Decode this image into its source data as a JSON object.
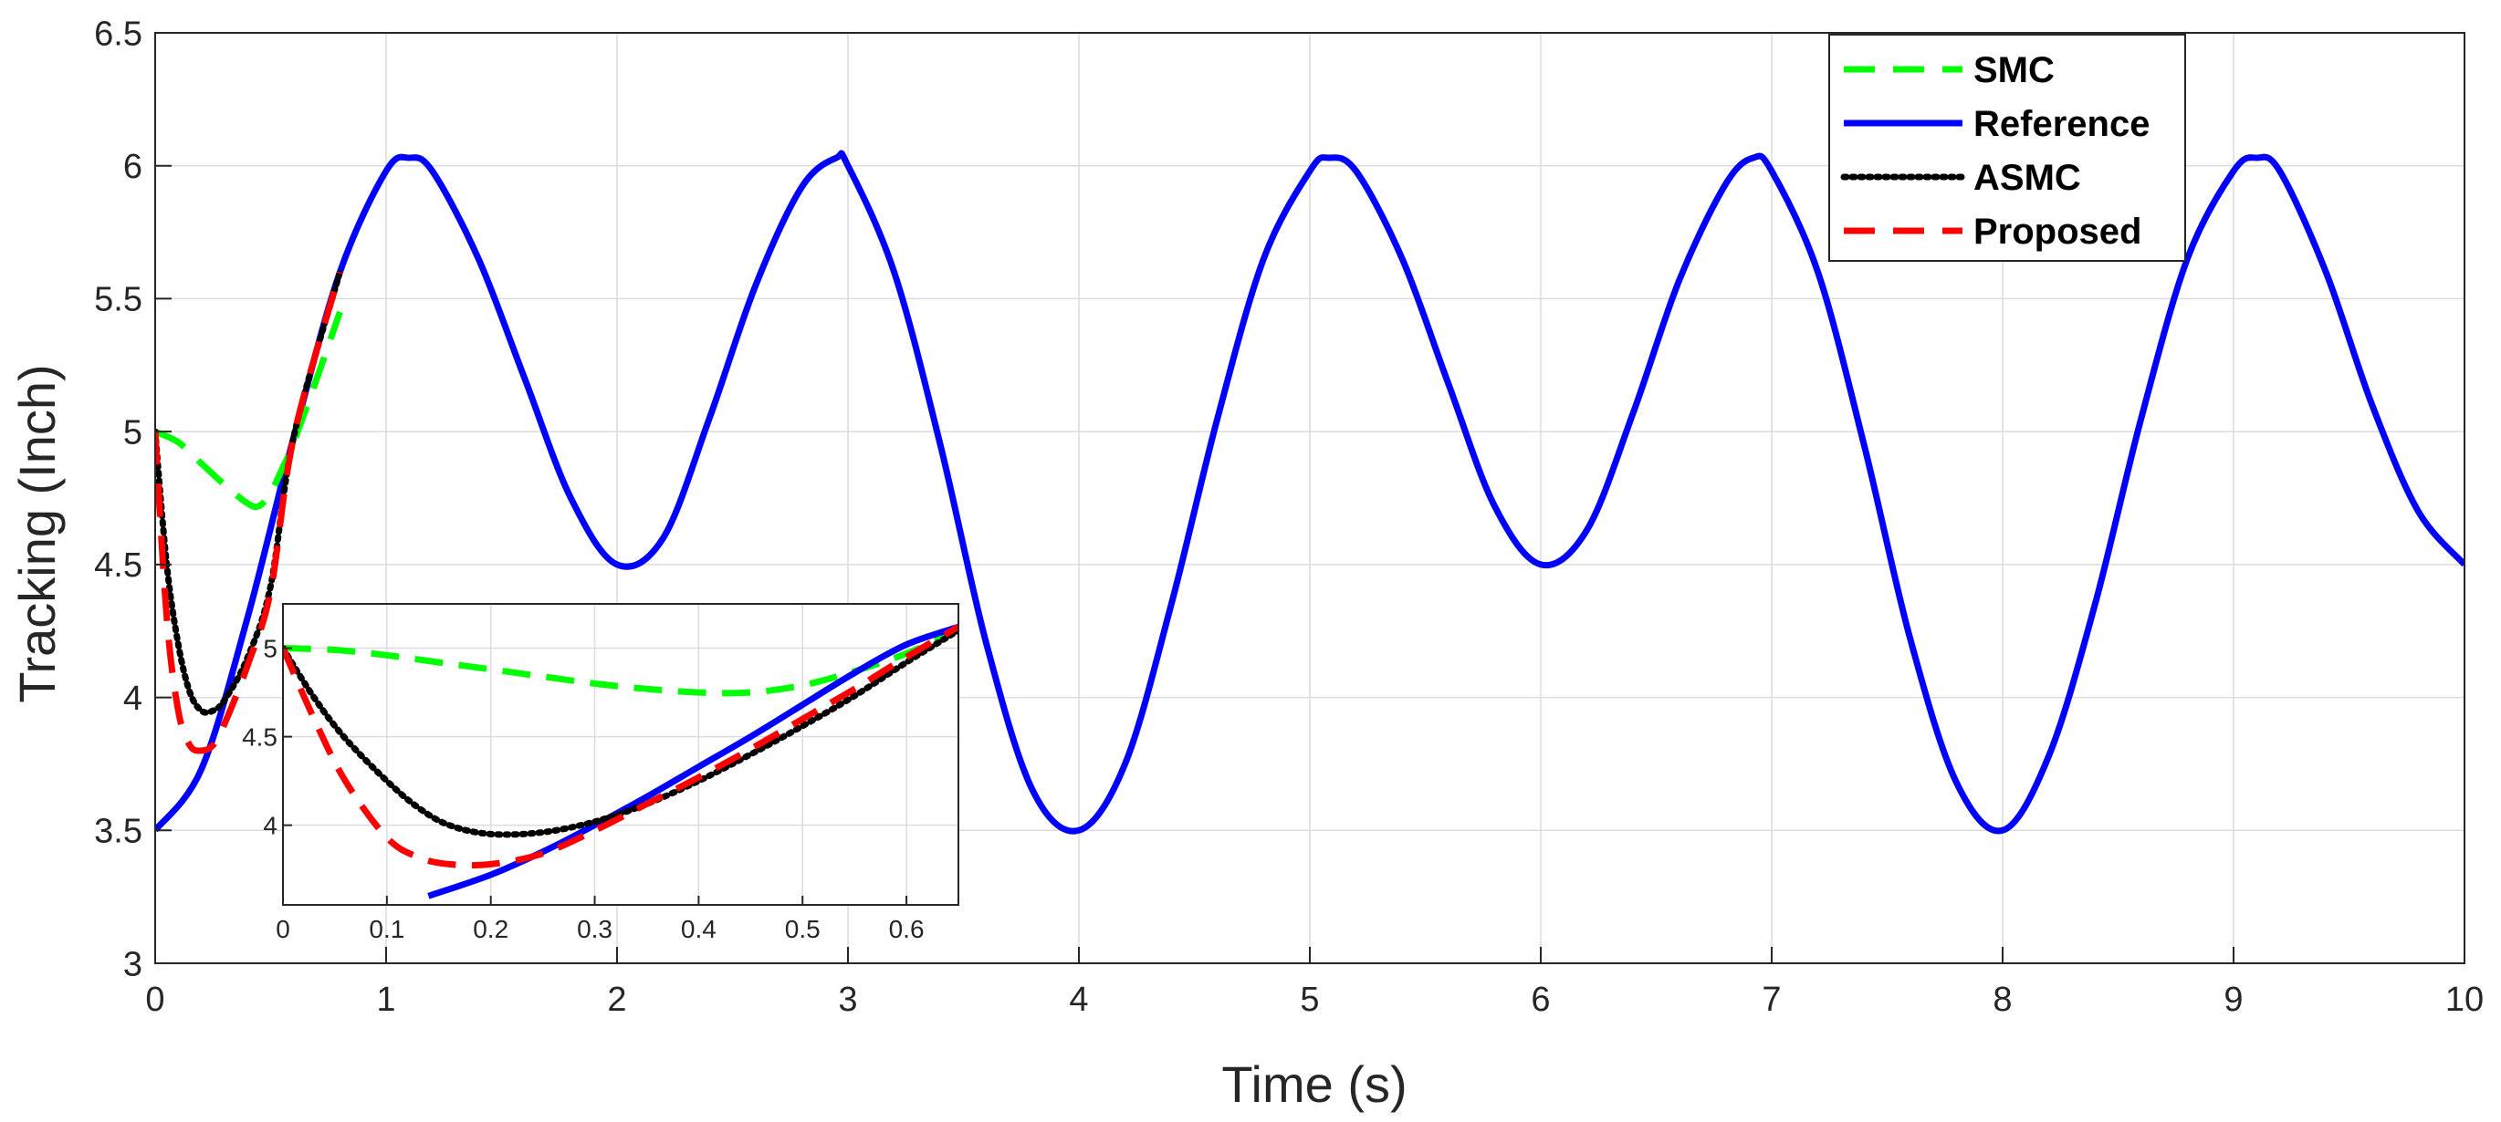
{
  "chart_data": [
    {
      "type": "line",
      "title": "",
      "xlabel": "Time (s)",
      "ylabel": "Tracking (Inch)",
      "xlim": [
        0,
        10
      ],
      "ylim": [
        3,
        6.5
      ],
      "xticks": [
        "0",
        "1",
        "2",
        "3",
        "4",
        "5",
        "6",
        "7",
        "8",
        "9",
        "10"
      ],
      "yticks": [
        "3",
        "3.5",
        "4",
        "4.5",
        "5",
        "5.5",
        "6",
        "6.5"
      ],
      "grid": true,
      "legend": {
        "placement": "top-right"
      },
      "series": [
        {
          "name": "SMC",
          "color": "#00ff00",
          "style": "dashed",
          "x": [
            0,
            0.1,
            0.2,
            0.3,
            0.4,
            0.45,
            0.5,
            0.55,
            0.6,
            0.7,
            0.8
          ],
          "y": [
            5.0,
            4.96,
            4.88,
            4.8,
            4.73,
            4.72,
            4.77,
            4.86,
            4.96,
            5.2,
            5.45
          ]
        },
        {
          "name": "Reference",
          "color": "#0000ff",
          "style": "solid",
          "x": [
            0,
            0.2,
            0.4,
            0.6,
            0.8,
            1.0,
            1.1,
            1.2,
            1.4,
            1.6,
            1.8,
            2.0,
            2.2,
            2.4,
            2.6,
            2.8,
            2.95,
            3.0,
            3.2,
            3.4,
            3.6,
            3.8,
            4.0,
            4.2,
            4.4,
            4.6,
            4.8,
            5.0,
            5.08,
            5.2,
            5.4,
            5.6,
            5.8,
            6.0,
            6.2,
            6.4,
            6.6,
            6.8,
            6.92,
            7.0,
            7.2,
            7.4,
            7.6,
            7.8,
            8.0,
            8.2,
            8.4,
            8.6,
            8.8,
            9.0,
            9.1,
            9.2,
            9.4,
            9.6,
            9.8,
            10.0
          ],
          "y": [
            3.5,
            3.73,
            4.3,
            4.98,
            5.6,
            5.98,
            6.03,
            5.98,
            5.65,
            5.2,
            4.75,
            4.5,
            4.6,
            5.05,
            5.55,
            5.92,
            6.03,
            6.0,
            5.6,
            4.95,
            4.2,
            3.65,
            3.5,
            3.75,
            4.35,
            5.05,
            5.65,
            5.98,
            6.03,
            5.98,
            5.65,
            5.18,
            4.72,
            4.5,
            4.63,
            5.07,
            5.57,
            5.93,
            6.03,
            5.98,
            5.6,
            4.95,
            4.22,
            3.68,
            3.5,
            3.78,
            4.35,
            5.05,
            5.65,
            5.98,
            6.03,
            5.98,
            5.6,
            5.1,
            4.7,
            4.5
          ]
        },
        {
          "name": "ASMC",
          "color": "#000000",
          "style": "dotted",
          "x": [
            0,
            0.05,
            0.1,
            0.15,
            0.2,
            0.25,
            0.3,
            0.4,
            0.5,
            0.6,
            0.8
          ],
          "y": [
            5.0,
            4.5,
            4.2,
            4.02,
            3.95,
            3.95,
            3.99,
            4.15,
            4.42,
            4.98,
            5.6
          ]
        },
        {
          "name": "Proposed",
          "color": "#ff0000",
          "style": "dashed",
          "x": [
            0,
            0.05,
            0.1,
            0.15,
            0.2,
            0.25,
            0.3,
            0.4,
            0.5,
            0.6,
            0.8
          ],
          "y": [
            5.0,
            4.3,
            3.95,
            3.82,
            3.8,
            3.82,
            3.9,
            4.12,
            4.4,
            4.98,
            5.6
          ]
        }
      ]
    },
    {
      "type": "line",
      "title": "",
      "xlabel": "",
      "ylabel": "",
      "xlim": [
        0,
        0.65
      ],
      "ylim": [
        3.55,
        5.25
      ],
      "xticks": [
        "0",
        "0.1",
        "0.2",
        "0.3",
        "0.4",
        "0.5",
        "0.6"
      ],
      "yticks": [
        "4",
        "4.5",
        "5"
      ],
      "grid": true,
      "series": [
        {
          "name": "SMC",
          "color": "#00ff00",
          "style": "dashed",
          "x": [
            0,
            0.05,
            0.1,
            0.15,
            0.2,
            0.25,
            0.3,
            0.35,
            0.4,
            0.45,
            0.5,
            0.55,
            0.6,
            0.65
          ],
          "y": [
            5.0,
            4.99,
            4.96,
            4.92,
            4.88,
            4.84,
            4.8,
            4.77,
            4.75,
            4.75,
            4.79,
            4.87,
            4.97,
            5.1
          ]
        },
        {
          "name": "Reference",
          "color": "#0000ff",
          "style": "solid",
          "x": [
            0.14,
            0.2,
            0.25,
            0.3,
            0.35,
            0.4,
            0.45,
            0.5,
            0.55,
            0.6,
            0.65
          ],
          "y": [
            3.6,
            3.72,
            3.85,
            4.0,
            4.16,
            4.33,
            4.5,
            4.68,
            4.86,
            5.02,
            5.12
          ]
        },
        {
          "name": "ASMC",
          "color": "#000000",
          "style": "dotted",
          "x": [
            0,
            0.03,
            0.06,
            0.1,
            0.13,
            0.16,
            0.2,
            0.25,
            0.3,
            0.35,
            0.4,
            0.45,
            0.5,
            0.55,
            0.6,
            0.65
          ],
          "y": [
            5.0,
            4.72,
            4.49,
            4.25,
            4.1,
            4.0,
            3.95,
            3.96,
            4.02,
            4.12,
            4.25,
            4.4,
            4.56,
            4.73,
            4.92,
            5.1
          ]
        },
        {
          "name": "Proposed",
          "color": "#ff0000",
          "style": "dashed",
          "x": [
            0,
            0.03,
            0.06,
            0.1,
            0.13,
            0.16,
            0.2,
            0.25,
            0.3,
            0.35,
            0.4,
            0.45,
            0.5,
            0.55,
            0.6,
            0.65
          ],
          "y": [
            5.0,
            4.6,
            4.25,
            3.93,
            3.82,
            3.78,
            3.78,
            3.84,
            3.97,
            4.12,
            4.27,
            4.43,
            4.6,
            4.77,
            4.95,
            5.12
          ]
        }
      ]
    }
  ],
  "legend": {
    "entries": [
      {
        "label": "SMC",
        "color": "#00ff00",
        "style": "dashed"
      },
      {
        "label": "Reference",
        "color": "#0000ff",
        "style": "solid"
      },
      {
        "label": "ASMC",
        "color": "#000000",
        "style": "dotted"
      },
      {
        "label": "Proposed",
        "color": "#ff0000",
        "style": "dashed"
      }
    ]
  }
}
